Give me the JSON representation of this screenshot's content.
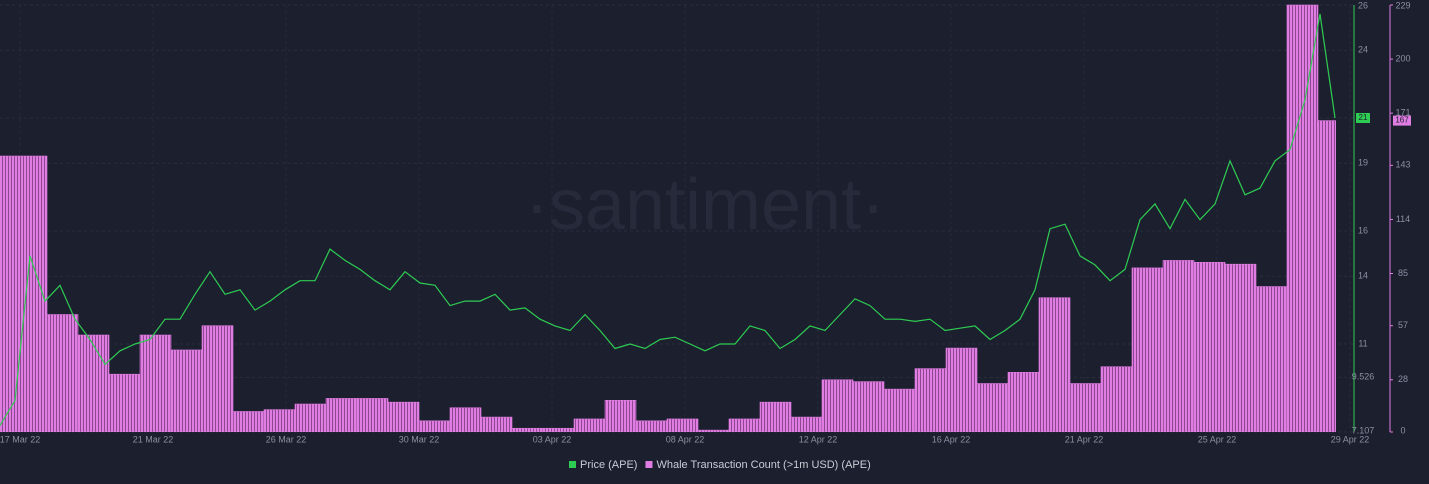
{
  "chart_data": {
    "type": "bar",
    "watermark": "·santiment·",
    "xticks": [
      "17 Mar 22",
      "21 Mar 22",
      "26 Mar 22",
      "30 Mar 22",
      "03 Apr 22",
      "08 Apr 22",
      "12 Apr 22",
      "16 Apr 22",
      "21 Apr 22",
      "25 Apr 22",
      "29 Apr 22"
    ],
    "ylim": [
      7.107,
      26
    ],
    "yticks": [
      7.107,
      9.526,
      11,
      14,
      16,
      19,
      21,
      24,
      26
    ],
    "y2lim": [
      0,
      229
    ],
    "y2ticks": [
      0,
      28,
      57,
      85,
      114,
      143,
      171,
      200,
      229
    ],
    "grid": true,
    "series": [
      {
        "name": "Price (APE)",
        "type": "line",
        "color": "#2ecc52",
        "values": [
          7.4,
          8.5,
          14.9,
          12.9,
          13.6,
          12.1,
          11.2,
          10.1,
          10.7,
          11.0,
          11.2,
          12.1,
          12.1,
          13.2,
          14.2,
          13.2,
          13.4,
          12.5,
          12.9,
          13.4,
          13.8,
          13.8,
          15.2,
          14.7,
          14.3,
          13.8,
          13.4,
          14.2,
          13.7,
          13.6,
          12.7,
          12.9,
          12.9,
          13.2,
          12.5,
          12.6,
          12.1,
          11.8,
          11.6,
          12.3,
          11.6,
          10.8,
          11.0,
          10.8,
          11.2,
          11.3,
          11.0,
          10.7,
          11.0,
          11.0,
          11.8,
          11.6,
          10.8,
          11.2,
          11.8,
          11.6,
          12.3,
          13.0,
          12.7,
          12.1,
          12.1,
          12.0,
          12.1,
          11.6,
          11.7,
          11.8,
          11.2,
          11.6,
          12.1,
          13.4,
          16.1,
          16.3,
          14.9,
          14.5,
          13.8,
          14.3,
          16.5,
          17.2,
          16.1,
          17.4,
          16.5,
          17.2,
          19.1,
          17.6,
          17.9,
          19.1,
          19.6,
          21.8,
          25.6,
          21
        ]
      },
      {
        "name": "Whale Transaction Count (>1m USD) (APE)",
        "type": "bar",
        "color": "#e07de2",
        "axis": "y2",
        "values": [
          148,
          148,
          63,
          52,
          31,
          52,
          44,
          57,
          11,
          12,
          15,
          18,
          18,
          16,
          6,
          13,
          8,
          2,
          2,
          7,
          17,
          6,
          7,
          1,
          7,
          16,
          8,
          28,
          27,
          23,
          34,
          45,
          26,
          32,
          72,
          26,
          35,
          88,
          92,
          91,
          90,
          78,
          229,
          167
        ]
      }
    ]
  }
}
